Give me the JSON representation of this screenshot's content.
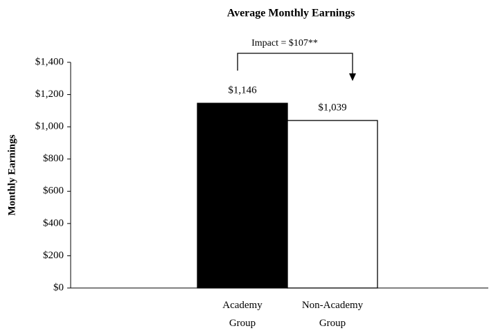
{
  "chart_data": {
    "type": "bar",
    "title": "Average Monthly Earnings",
    "y_label": "Monthly Earnings",
    "annotation": "Impact = $107**",
    "categories": [
      "Academy Group",
      "Non-Academy Group"
    ],
    "values": [
      1146,
      1039
    ],
    "value_labels": [
      "$1,146",
      "$1,039"
    ],
    "colors": [
      "#000000",
      "#ffffff"
    ],
    "ylim": [
      0,
      1400
    ],
    "yticks": [
      {
        "value": 0,
        "label": "$0"
      },
      {
        "value": 200,
        "label": "$200"
      },
      {
        "value": 400,
        "label": "$400"
      },
      {
        "value": 600,
        "label": "$600"
      },
      {
        "value": 800,
        "label": "$800"
      },
      {
        "value": 1000,
        "label": "$1,000"
      },
      {
        "value": 1200,
        "label": "$1,200"
      },
      {
        "value": 1400,
        "label": "$1,400"
      }
    ],
    "grid": false
  }
}
